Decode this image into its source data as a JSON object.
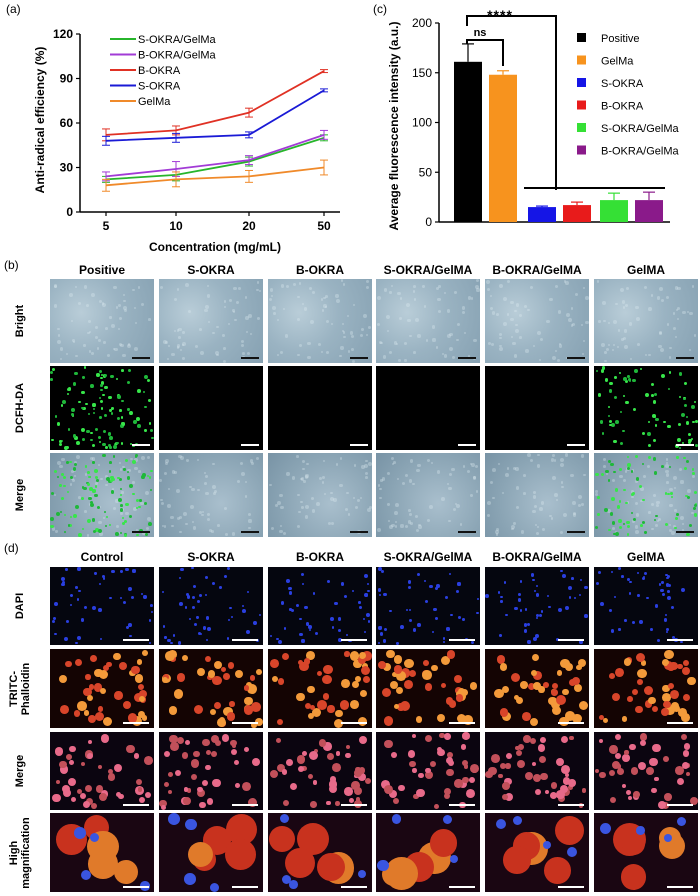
{
  "panels": {
    "a": "(a)",
    "b": "(b)",
    "c": "(c)",
    "d": "(d)"
  },
  "chart_a": {
    "type": "line",
    "ylabel": "Anti-radical efficiency (%)",
    "xlabel": "Concentration (mg/mL)",
    "x": [
      "5",
      "10",
      "20",
      "50"
    ],
    "yticks": [
      "0",
      "30",
      "60",
      "90",
      "120"
    ],
    "ylim": [
      0,
      120
    ],
    "series": [
      {
        "name": "S-OKRA/GelMa",
        "color": "#27b52b",
        "values": [
          22,
          25,
          34,
          50
        ],
        "err": [
          2,
          4,
          3,
          2
        ]
      },
      {
        "name": "B-OKRA/GelMa",
        "color": "#a23bd6",
        "values": [
          24,
          29,
          35,
          52
        ],
        "err": [
          3,
          5,
          3,
          3
        ]
      },
      {
        "name": "B-OKRA",
        "color": "#e03124",
        "values": [
          52,
          55,
          67,
          95
        ],
        "err": [
          4,
          3,
          3,
          1
        ]
      },
      {
        "name": "S-OKRA",
        "color": "#1a1ad6",
        "values": [
          48,
          50,
          52,
          82
        ],
        "err": [
          3,
          3,
          2,
          1
        ]
      },
      {
        "name": "GelMa",
        "color": "#f08a2a",
        "values": [
          18,
          22,
          24,
          30
        ],
        "err": [
          4,
          5,
          4,
          5
        ]
      }
    ]
  },
  "chart_c": {
    "type": "bar",
    "ylabel": "Average fluorescence intensity (a.u.)",
    "yticks": [
      "0",
      "50",
      "100",
      "150",
      "200"
    ],
    "ylim": [
      0,
      200
    ],
    "categories": [
      "Positive",
      "GelMa",
      "S-OKRA",
      "B-OKRA",
      "S-OKRA/GelMa",
      "B-OKRA/GelMa"
    ],
    "values": [
      161,
      148,
      15,
      17,
      22,
      22
    ],
    "err": [
      18,
      4,
      1,
      3,
      7,
      8
    ],
    "colors": [
      "#000000",
      "#f7931e",
      "#1515e6",
      "#e81b1b",
      "#35e035",
      "#8a1a8a"
    ],
    "ns": "ns",
    "stars": "****"
  },
  "section_b": {
    "columns": [
      "Positive",
      "S-OKRA",
      "B-OKRA",
      "S-OKRA/GelMA",
      "B-OKRA/GelMA",
      "GelMA"
    ],
    "rows": [
      "Bright",
      "DCFH-DA",
      "Merge"
    ]
  },
  "section_d": {
    "columns": [
      "Control",
      "S-OKRA",
      "B-OKRA",
      "S-OKRA/GelMA",
      "B-OKRA/GelMA",
      "GelMA"
    ],
    "rows": [
      "DAPI",
      "TRITC-",
      "Phalloidin",
      "Merge",
      "High",
      "magnification"
    ]
  }
}
